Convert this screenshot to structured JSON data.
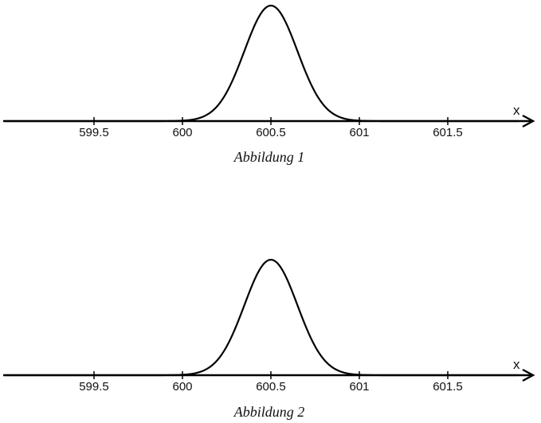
{
  "chart_data": [
    {
      "type": "line",
      "caption": "Abbildung 1",
      "xlabel": "x",
      "ylabel": "",
      "x_ticks": [
        599.5,
        600,
        600.5,
        601,
        601.5
      ],
      "x_tick_labels": [
        "599.5",
        "600",
        "600.5",
        "601",
        "601.5"
      ],
      "xlim": [
        599.0,
        601.9
      ],
      "grid": false,
      "series": [
        {
          "curve": "normal-density",
          "mean": 600.5,
          "sd": 0.15
        }
      ]
    },
    {
      "type": "line",
      "caption": "Abbildung 2",
      "xlabel": "x",
      "ylabel": "",
      "x_ticks": [
        599.5,
        600,
        600.5,
        601,
        601.5
      ],
      "x_tick_labels": [
        "599.5",
        "600",
        "600.5",
        "601",
        "601.5"
      ],
      "xlim": [
        599.0,
        601.9
      ],
      "grid": false,
      "series": [
        {
          "curve": "normal-density",
          "mean": 600.5,
          "sd": 0.15
        }
      ]
    }
  ]
}
